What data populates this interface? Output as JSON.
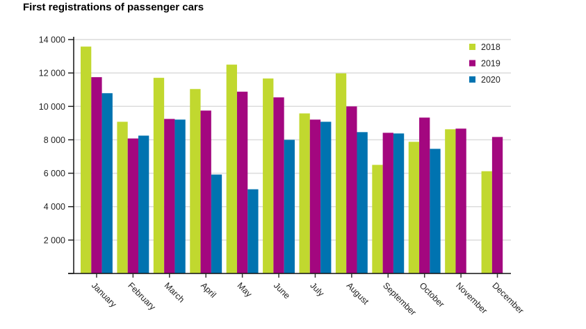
{
  "chart_data": {
    "type": "bar",
    "title": "First registrations of passenger cars",
    "xlabel": "",
    "ylabel": "",
    "ylim": [
      0,
      14000
    ],
    "yticks": [
      0,
      2000,
      4000,
      6000,
      8000,
      10000,
      12000,
      14000
    ],
    "ytick_labels": [
      "",
      "2 000",
      "4 000",
      "6 000",
      "8 000",
      "10 000",
      "12 000",
      "14 000"
    ],
    "grid": true,
    "legend_position": "top-right",
    "categories": [
      "January",
      "February",
      "March",
      "April",
      "May",
      "June",
      "July",
      "August",
      "September",
      "October",
      "November",
      "December"
    ],
    "series": [
      {
        "name": "2018",
        "color": "#c1d82f",
        "values": [
          13580,
          9080,
          11710,
          11040,
          12500,
          11670,
          9580,
          11980,
          6500,
          7880,
          8630,
          6120
        ]
      },
      {
        "name": "2019",
        "color": "#a3077f",
        "values": [
          11750,
          8080,
          9250,
          9750,
          10880,
          10540,
          9210,
          10000,
          8420,
          9330,
          8670,
          8170
        ]
      },
      {
        "name": "2020",
        "color": "#0073b0",
        "values": [
          10790,
          8250,
          9210,
          5920,
          5040,
          8000,
          9080,
          8460,
          8380,
          7460,
          null,
          null
        ]
      }
    ]
  }
}
